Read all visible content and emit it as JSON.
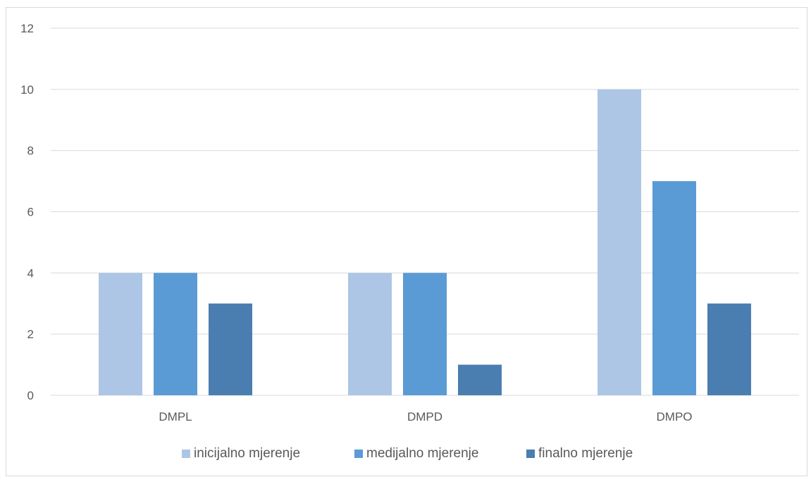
{
  "chart_data": {
    "type": "bar",
    "categories": [
      "DMPL",
      "DMPD",
      "DMPO"
    ],
    "series": [
      {
        "name": "inicijalno mjerenje",
        "values": [
          4,
          4,
          10
        ],
        "color": "#adc6e5"
      },
      {
        "name": "medijalno mjerenje",
        "values": [
          4,
          4,
          7
        ],
        "color": "#5b9bd5"
      },
      {
        "name": "finalno mjerenje",
        "values": [
          3,
          1,
          3
        ],
        "color": "#4a7eb0"
      }
    ],
    "y_ticks": [
      "0",
      "2",
      "4",
      "6",
      "8",
      "10",
      "12"
    ],
    "ylim": [
      0,
      12
    ],
    "grid": true,
    "legend_position": "bottom"
  }
}
